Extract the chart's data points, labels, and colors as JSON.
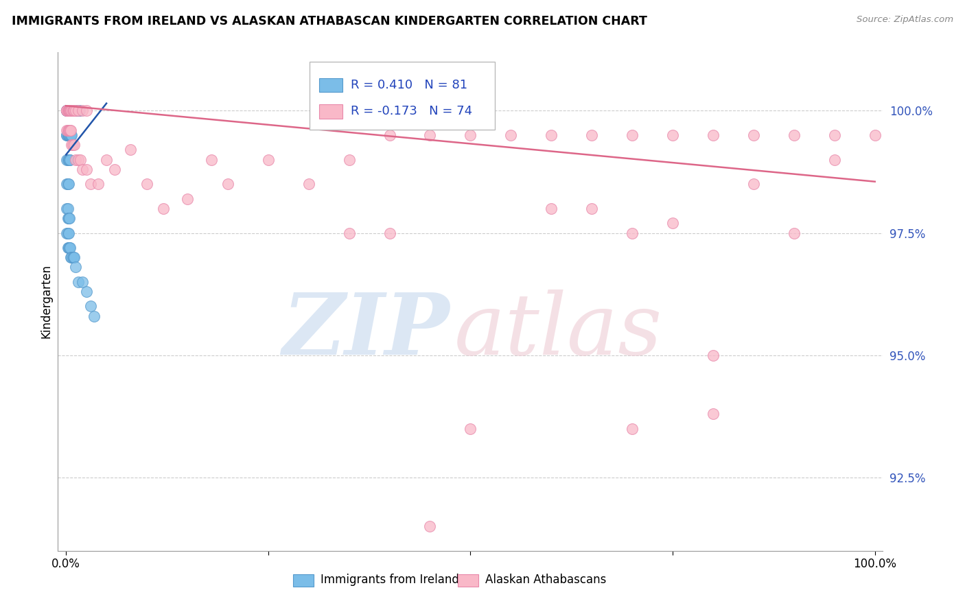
{
  "title": "IMMIGRANTS FROM IRELAND VS ALASKAN ATHABASCAN KINDERGARTEN CORRELATION CHART",
  "source": "Source: ZipAtlas.com",
  "ylabel": "Kindergarten",
  "yticks": [
    92.5,
    95.0,
    97.5,
    100.0
  ],
  "ymin": 91.0,
  "ymax": 101.2,
  "xmin": -0.01,
  "xmax": 1.01,
  "blue_R": 0.41,
  "blue_N": 81,
  "pink_R": -0.173,
  "pink_N": 74,
  "blue_color": "#7bbde8",
  "blue_edge_color": "#5599cc",
  "pink_color": "#f9b8c8",
  "pink_edge_color": "#e888aa",
  "blue_line_color": "#2255aa",
  "pink_line_color": "#dd6688",
  "legend_label_blue": "Immigrants from Ireland",
  "legend_label_pink": "Alaskan Athabascans",
  "blue_trend_x": [
    0.0,
    0.05
  ],
  "blue_trend_y": [
    99.1,
    100.15
  ],
  "pink_trend_x": [
    0.0,
    1.0
  ],
  "pink_trend_y": [
    100.1,
    98.55
  ],
  "blue_x": [
    0.001,
    0.001,
    0.001,
    0.001,
    0.001,
    0.002,
    0.002,
    0.002,
    0.002,
    0.002,
    0.002,
    0.003,
    0.003,
    0.003,
    0.003,
    0.003,
    0.004,
    0.004,
    0.004,
    0.004,
    0.005,
    0.005,
    0.005,
    0.006,
    0.006,
    0.007,
    0.007,
    0.008,
    0.008,
    0.009,
    0.009,
    0.01,
    0.01,
    0.011,
    0.012,
    0.013,
    0.014,
    0.015,
    0.016,
    0.017,
    0.001,
    0.001,
    0.002,
    0.002,
    0.003,
    0.003,
    0.004,
    0.005,
    0.006,
    0.007,
    0.001,
    0.002,
    0.003,
    0.004,
    0.005,
    0.001,
    0.002,
    0.003,
    0.001,
    0.002,
    0.002,
    0.003,
    0.004,
    0.001,
    0.002,
    0.003,
    0.002,
    0.003,
    0.004,
    0.005,
    0.006,
    0.007,
    0.008,
    0.009,
    0.01,
    0.012,
    0.015,
    0.02,
    0.025,
    0.03,
    0.035
  ],
  "blue_y": [
    100.0,
    100.0,
    100.0,
    100.0,
    100.0,
    100.0,
    100.0,
    100.0,
    100.0,
    100.0,
    100.0,
    100.0,
    100.0,
    100.0,
    100.0,
    100.0,
    100.0,
    100.0,
    100.0,
    100.0,
    100.0,
    100.0,
    100.0,
    100.0,
    100.0,
    100.0,
    100.0,
    100.0,
    100.0,
    100.0,
    100.0,
    100.0,
    100.0,
    100.0,
    100.0,
    100.0,
    100.0,
    100.0,
    100.0,
    100.0,
    99.5,
    99.5,
    99.5,
    99.5,
    99.5,
    99.5,
    99.5,
    99.5,
    99.5,
    99.5,
    99.0,
    99.0,
    99.0,
    99.0,
    99.0,
    98.5,
    98.5,
    98.5,
    98.0,
    98.0,
    97.8,
    97.8,
    97.8,
    97.5,
    97.5,
    97.5,
    97.2,
    97.2,
    97.2,
    97.2,
    97.0,
    97.0,
    97.0,
    97.0,
    97.0,
    96.8,
    96.5,
    96.5,
    96.3,
    96.0,
    95.8
  ],
  "pink_x": [
    0.001,
    0.001,
    0.001,
    0.002,
    0.002,
    0.003,
    0.003,
    0.004,
    0.004,
    0.005,
    0.005,
    0.006,
    0.007,
    0.008,
    0.009,
    0.01,
    0.012,
    0.015,
    0.02,
    0.025,
    0.001,
    0.002,
    0.003,
    0.004,
    0.005,
    0.006,
    0.007,
    0.008,
    0.01,
    0.012,
    0.015,
    0.018,
    0.02,
    0.025,
    0.03,
    0.04,
    0.05,
    0.06,
    0.08,
    0.1,
    0.12,
    0.15,
    0.18,
    0.2,
    0.25,
    0.3,
    0.35,
    0.4,
    0.45,
    0.5,
    0.55,
    0.6,
    0.65,
    0.7,
    0.75,
    0.8,
    0.85,
    0.9,
    0.95,
    1.0,
    0.6,
    0.65,
    0.7,
    0.75,
    0.8,
    0.85,
    0.9,
    0.95,
    0.7,
    0.8,
    0.4,
    0.5,
    0.35,
    0.45
  ],
  "pink_y": [
    100.0,
    100.0,
    100.0,
    100.0,
    100.0,
    100.0,
    100.0,
    100.0,
    100.0,
    100.0,
    100.0,
    100.0,
    100.0,
    100.0,
    100.0,
    100.0,
    100.0,
    100.0,
    100.0,
    100.0,
    99.6,
    99.6,
    99.6,
    99.6,
    99.6,
    99.6,
    99.3,
    99.3,
    99.3,
    99.0,
    99.0,
    99.0,
    98.8,
    98.8,
    98.5,
    98.5,
    99.0,
    98.8,
    99.2,
    98.5,
    98.0,
    98.2,
    99.0,
    98.5,
    99.0,
    98.5,
    99.0,
    99.5,
    99.5,
    99.5,
    99.5,
    99.5,
    99.5,
    99.5,
    99.5,
    99.5,
    99.5,
    99.5,
    99.5,
    99.5,
    98.0,
    98.0,
    97.5,
    97.7,
    95.0,
    98.5,
    97.5,
    99.0,
    93.5,
    93.8,
    97.5,
    93.5,
    97.5,
    91.5
  ]
}
